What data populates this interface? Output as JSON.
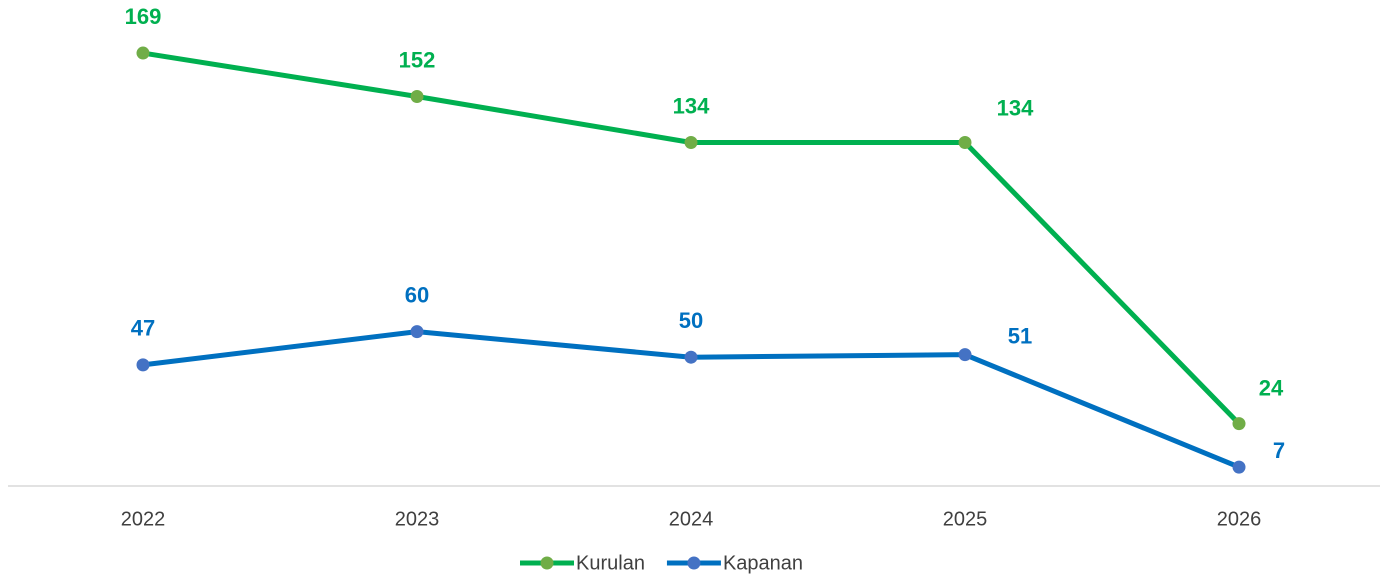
{
  "chart_data": {
    "type": "line",
    "categories": [
      "2022",
      "2023",
      "2024",
      "2025",
      "2026"
    ],
    "series": [
      {
        "name": "Kurulan",
        "color": "#00b050",
        "marker_color": "#70ad47",
        "values": [
          169,
          152,
          134,
          134,
          24
        ]
      },
      {
        "name": "Kapanan",
        "color": "#0070c0",
        "marker_color": "#4472c4",
        "values": [
          47,
          60,
          50,
          51,
          7
        ]
      }
    ],
    "ylim": [
      0,
      180
    ],
    "legend": "bottom"
  }
}
